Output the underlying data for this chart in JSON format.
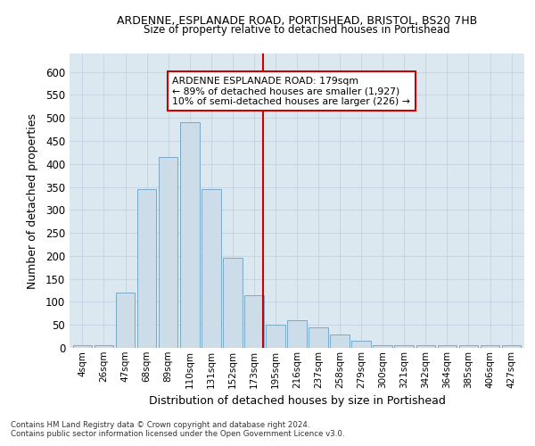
{
  "title_line1": "ARDENNE, ESPLANADE ROAD, PORTISHEAD, BRISTOL, BS20 7HB",
  "title_line2": "Size of property relative to detached houses in Portishead",
  "xlabel": "Distribution of detached houses by size in Portishead",
  "ylabel": "Number of detached properties",
  "categories": [
    "4sqm",
    "26sqm",
    "47sqm",
    "68sqm",
    "89sqm",
    "110sqm",
    "131sqm",
    "152sqm",
    "173sqm",
    "195sqm",
    "216sqm",
    "237sqm",
    "258sqm",
    "279sqm",
    "300sqm",
    "321sqm",
    "342sqm",
    "364sqm",
    "385sqm",
    "406sqm",
    "427sqm"
  ],
  "values": [
    5,
    5,
    120,
    345,
    415,
    490,
    345,
    195,
    115,
    50,
    60,
    45,
    30,
    15,
    5,
    5,
    5,
    5,
    5,
    5,
    5
  ],
  "bar_color": "#ccdce8",
  "bar_edge_color": "#7aaac8",
  "vline_color": "#cc0000",
  "annotation_text": "ARDENNE ESPLANADE ROAD: 179sqm\n← 89% of detached houses are smaller (1,927)\n10% of semi-detached houses are larger (226) →",
  "annotation_box_color": "#ffffff",
  "annotation_box_edge": "#cc0000",
  "ylim": [
    0,
    640
  ],
  "yticks": [
    0,
    50,
    100,
    150,
    200,
    250,
    300,
    350,
    400,
    450,
    500,
    550,
    600
  ],
  "grid_color": "#c8d4e4",
  "background_color": "#dce8f0",
  "footer_line1": "Contains HM Land Registry data © Crown copyright and database right 2024.",
  "footer_line2": "Contains public sector information licensed under the Open Government Licence v3.0."
}
